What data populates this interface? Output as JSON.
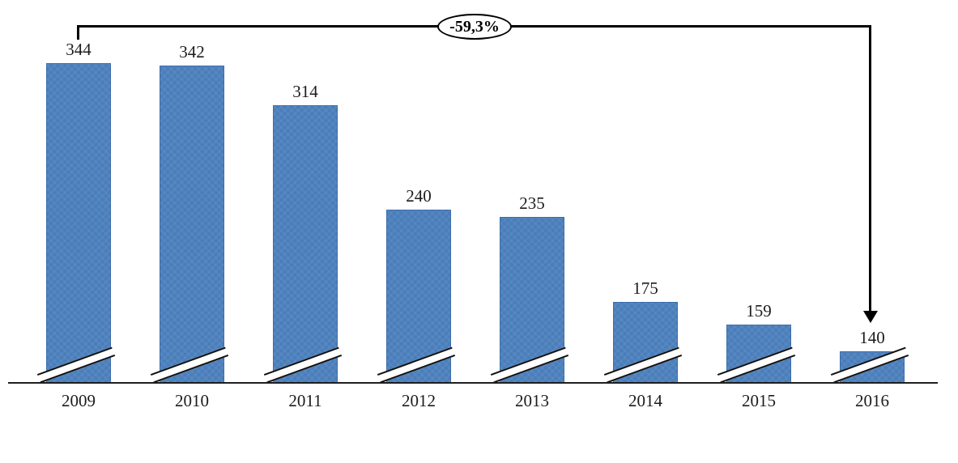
{
  "chart_data": {
    "type": "bar",
    "title": "",
    "xlabel": "",
    "ylabel": "",
    "legend": false,
    "grid": false,
    "axis_break_marks": true,
    "categories": [
      "2009",
      "2010",
      "2011",
      "2012",
      "2013",
      "2014",
      "2015",
      "2016"
    ],
    "values": [
      344,
      342,
      314,
      240,
      235,
      175,
      159,
      140
    ],
    "bar_color": "#4a7ebb",
    "bar_border_color": "#3e6daa",
    "axis_color": "#1f1f1f",
    "annotation": {
      "label": "-59,3%",
      "from_category": "2009",
      "to_category": "2016",
      "shape": "ellipse-on-bracket-with-down-arrow"
    }
  }
}
